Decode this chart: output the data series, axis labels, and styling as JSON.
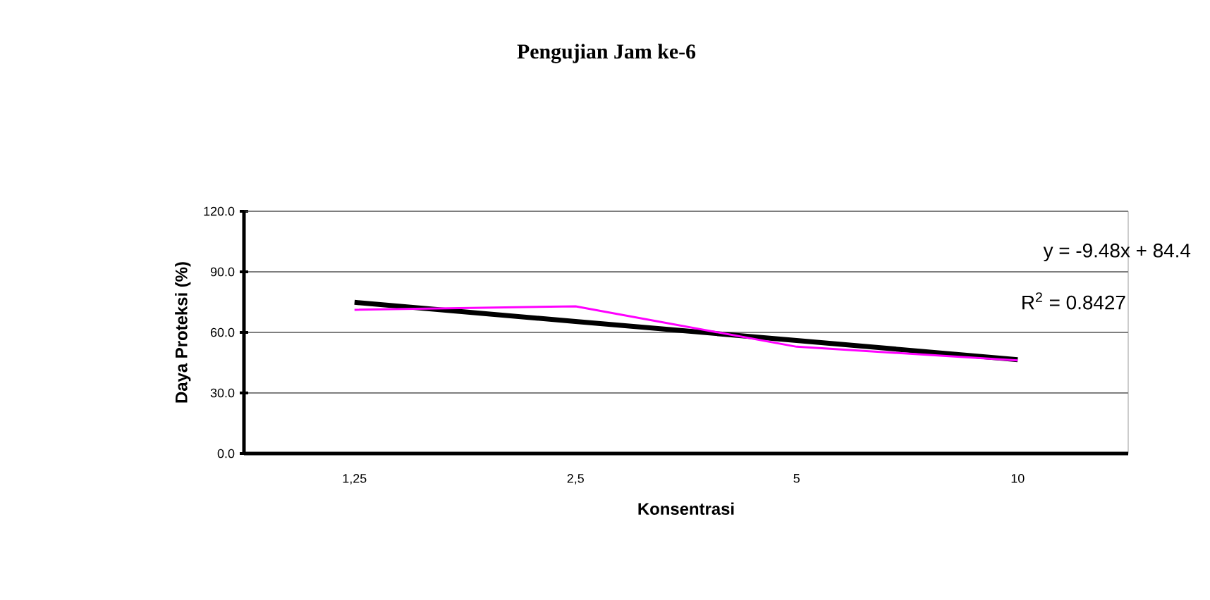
{
  "chart_data": {
    "type": "line",
    "title": "Pengujian Jam ke-6",
    "xlabel": "Konsentrasi",
    "ylabel": "Daya Proteksi (%)",
    "categories": [
      "1,25",
      "2,5",
      "5",
      "10"
    ],
    "series": [
      {
        "color": "#ff00ff",
        "values": [
          71.2,
          72.9,
          52.9,
          46.1
        ]
      },
      {
        "color": "#000000",
        "values": [
          74.9,
          65.4,
          56.0,
          46.5
        ]
      }
    ],
    "ylim": [
      0,
      120
    ],
    "yticks": [
      {
        "value": 0,
        "label": "0.0"
      },
      {
        "value": 30,
        "label": "30.0"
      },
      {
        "value": 60,
        "label": "60.0"
      },
      {
        "value": 90,
        "label": "90.0"
      },
      {
        "value": 120,
        "label": "120.0"
      }
    ],
    "grid": "y",
    "marker": "none",
    "line_style": "solid",
    "annotations": [
      "y = -9.48x + 84.4",
      "R$^{2}$ = 0.8427"
    ]
  }
}
